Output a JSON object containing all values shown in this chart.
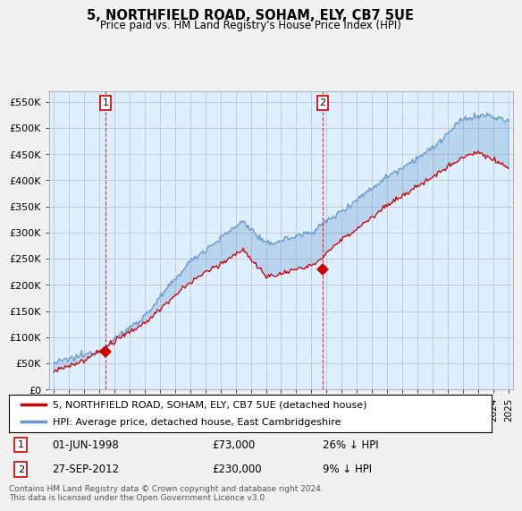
{
  "title": "5, NORTHFIELD ROAD, SOHAM, ELY, CB7 5UE",
  "subtitle": "Price paid vs. HM Land Registry's House Price Index (HPI)",
  "legend_line1": "5, NORTHFIELD ROAD, SOHAM, ELY, CB7 5UE (detached house)",
  "legend_line2": "HPI: Average price, detached house, East Cambridgeshire",
  "annotation1_label": "1",
  "annotation1_date": "01-JUN-1998",
  "annotation1_price": "£73,000",
  "annotation1_hpi": "26% ↓ HPI",
  "annotation1_year": 1998.42,
  "annotation1_value": 73000,
  "annotation2_label": "2",
  "annotation2_date": "27-SEP-2012",
  "annotation2_price": "£230,000",
  "annotation2_hpi": "9% ↓ HPI",
  "annotation2_year": 2012.75,
  "annotation2_value": 230000,
  "footer": "Contains HM Land Registry data © Crown copyright and database right 2024.\nThis data is licensed under the Open Government Licence v3.0.",
  "ylim": [
    0,
    570000
  ],
  "yticks": [
    0,
    50000,
    100000,
    150000,
    200000,
    250000,
    300000,
    350000,
    400000,
    450000,
    500000,
    550000
  ],
  "ytick_labels": [
    "£0",
    "£50K",
    "£100K",
    "£150K",
    "£200K",
    "£250K",
    "£300K",
    "£350K",
    "£400K",
    "£450K",
    "£500K",
    "£550K"
  ],
  "xlim_start": 1994.7,
  "xlim_end": 2025.3,
  "red_color": "#cc0000",
  "blue_color": "#6699cc",
  "blue_fill": "#ddeeff",
  "bg_color": "#f0f0f0",
  "plot_bg": "#ddeeff",
  "grid_color": "#bbbbbb"
}
